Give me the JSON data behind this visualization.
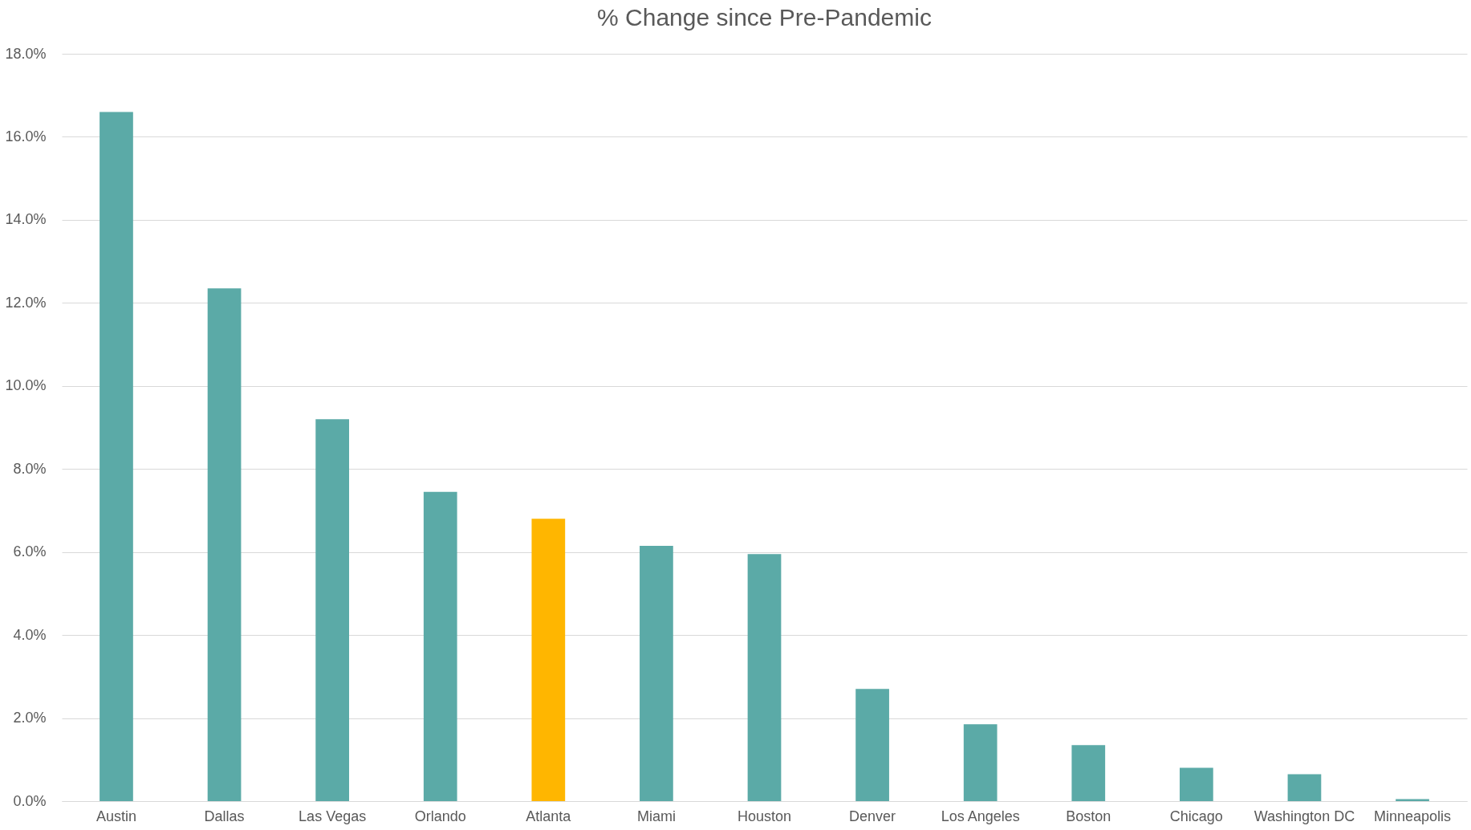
{
  "chart_data": {
    "type": "bar",
    "title": "% Change since Pre-Pandemic",
    "categories": [
      "Austin",
      "Dallas",
      "Las Vegas",
      "Orlando",
      "Atlanta",
      "Miami",
      "Houston",
      "Denver",
      "Los Angeles",
      "Boston",
      "Chicago",
      "Washington DC",
      "Minneapolis"
    ],
    "values": [
      16.6,
      12.35,
      9.2,
      7.45,
      6.8,
      6.15,
      5.95,
      2.7,
      1.85,
      1.35,
      0.8,
      0.65,
      0.05
    ],
    "colors": [
      "#5baaa7",
      "#5baaa7",
      "#5baaa7",
      "#5baaa7",
      "#ffb600",
      "#5baaa7",
      "#5baaa7",
      "#5baaa7",
      "#5baaa7",
      "#5baaa7",
      "#5baaa7",
      "#5baaa7",
      "#5baaa7"
    ],
    "ylim": [
      0,
      18
    ],
    "yticks": [
      {
        "value": 0,
        "label": "0.0%"
      },
      {
        "value": 2,
        "label": "2.0%"
      },
      {
        "value": 4,
        "label": "4.0%"
      },
      {
        "value": 6,
        "label": "6.0%"
      },
      {
        "value": 8,
        "label": "8.0%"
      },
      {
        "value": 10,
        "label": "10.0%"
      },
      {
        "value": 12,
        "label": "12.0%"
      },
      {
        "value": 14,
        "label": "14.0%"
      },
      {
        "value": 16,
        "label": "16.0%"
      },
      {
        "value": 18,
        "label": "18.0%"
      }
    ],
    "grid": "y"
  }
}
